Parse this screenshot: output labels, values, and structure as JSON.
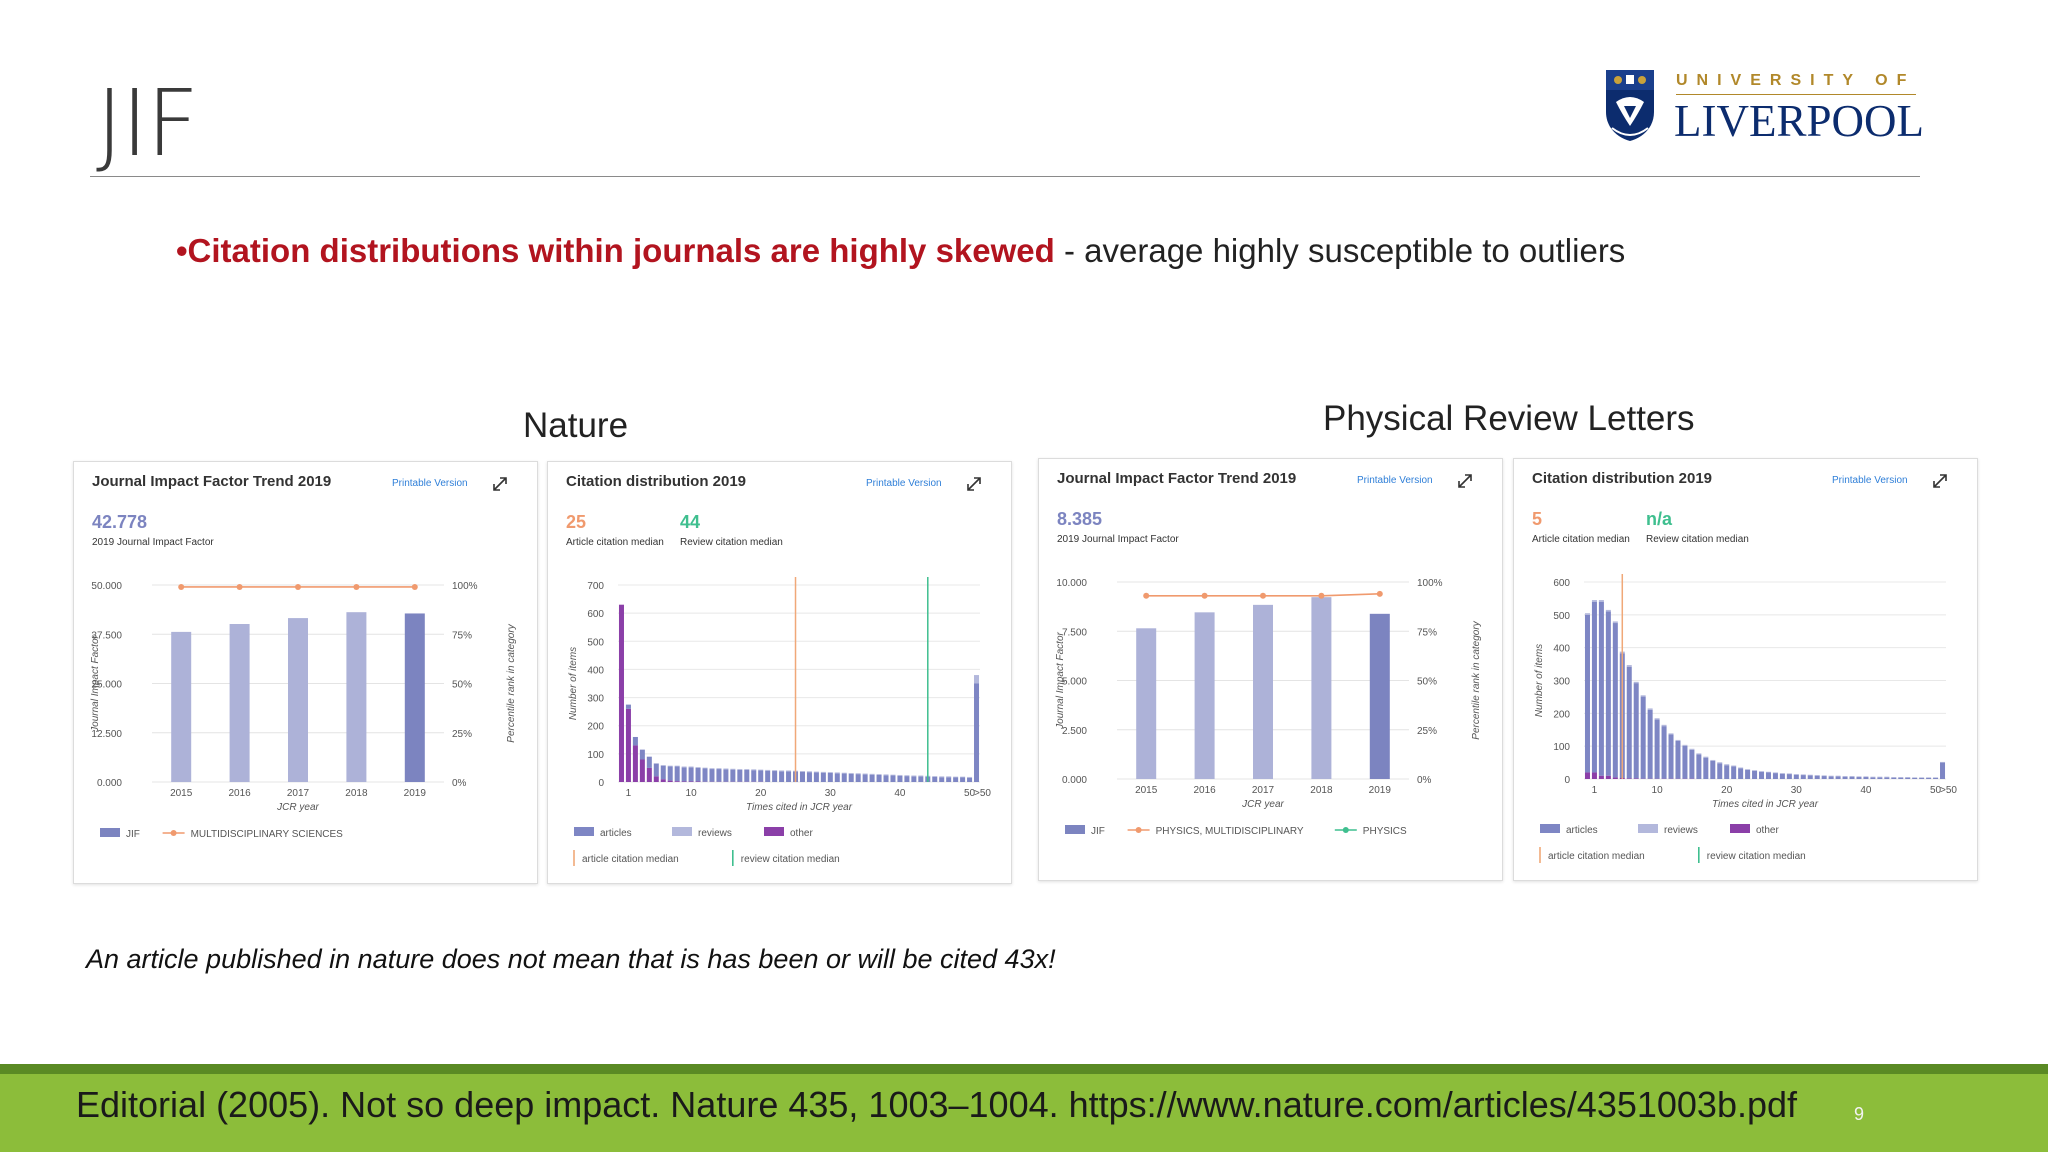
{
  "slide": {
    "title": "JIF",
    "bullet_bold": "•Citation distributions within journals are highly skewed",
    "bullet_rest": " - average highly susceptible to outliers",
    "note": "An article published in nature does not mean that is has been or will be cited 43x!",
    "footer_reference": "Editorial (2005). Not so deep impact. Nature 435, 1003–1004. https://www.nature.com/articles/4351003b.pdf",
    "page_number": "9"
  },
  "logo": {
    "line1": "UNIVERSITY OF",
    "line2": "LIVERPOOL",
    "colors": {
      "gold": "#b1882a",
      "navy": "#0c2c6e"
    }
  },
  "colors": {
    "accent_red": "#b2141f",
    "footer_green": "#8cbd3a",
    "jif_bar": "#adb2d8",
    "jif_bar_current": "#7c84c0",
    "category_orange": "#f09a6e",
    "article_median": "#f0a878",
    "review_median": "#3fbf8f",
    "articles": "#7e86c4",
    "reviews": "#b3b8dc",
    "other": "#8b3fa8"
  },
  "groups": [
    {
      "label": "Nature",
      "jif_panel": {
        "title": "Journal Impact Factor Trend 2019",
        "printable": "Printable Version",
        "value": "42.778",
        "value_label": "2019 Journal Impact Factor",
        "left_axis_label": "Journal Impact Factor",
        "right_axis_label": "Percentile rank in category",
        "x_axis_label": "JCR year",
        "left_ticks": [
          "0.000",
          "12.500",
          "25.000",
          "37.500",
          "50.000"
        ],
        "right_ticks": [
          "0%",
          "25%",
          "50%",
          "75%",
          "100%"
        ],
        "legend": [
          {
            "label": "JIF",
            "kind": "bar"
          },
          {
            "label": "MULTIDISCIPLINARY SCIENCES",
            "kind": "line",
            "color": "#f09a6e"
          }
        ]
      },
      "cit_panel": {
        "title": "Citation distribution 2019",
        "printable": "Printable Version",
        "article_median": "25",
        "article_median_label": "Article citation median",
        "review_median": "44",
        "review_median_label": "Review citation median",
        "y_axis_label": "Number of items",
        "x_axis_label": "Times cited in JCR year",
        "y_ticks": [
          "0",
          "100",
          "200",
          "300",
          "400",
          "500",
          "600",
          "700"
        ],
        "x_ticks": [
          "1",
          "10",
          "20",
          "30",
          "40",
          "50",
          ">50"
        ],
        "legend": [
          "articles",
          "reviews",
          "other"
        ],
        "legend2": [
          "article citation median",
          "review citation median"
        ]
      }
    },
    {
      "label": "Physical Review Letters",
      "jif_panel": {
        "title": "Journal Impact Factor Trend 2019",
        "printable": "Printable Version",
        "value": "8.385",
        "value_label": "2019 Journal Impact Factor",
        "left_axis_label": "Journal Impact Factor",
        "right_axis_label": "Percentile rank in category",
        "x_axis_label": "JCR year",
        "left_ticks": [
          "0.000",
          "2.500",
          "5.000",
          "7.500",
          "10.000"
        ],
        "right_ticks": [
          "0%",
          "25%",
          "50%",
          "75%",
          "100%"
        ],
        "legend": [
          {
            "label": "JIF",
            "kind": "bar"
          },
          {
            "label": "PHYSICS, MULTIDISCIPLINARY",
            "kind": "line",
            "color": "#f09a6e"
          },
          {
            "label": "PHYSICS",
            "kind": "line",
            "color": "#3fbf8f"
          }
        ]
      },
      "cit_panel": {
        "title": "Citation distribution 2019",
        "printable": "Printable Version",
        "article_median": "5",
        "article_median_label": "Article citation median",
        "review_median": "n/a",
        "review_median_label": "Review citation median",
        "y_axis_label": "Number of items",
        "x_axis_label": "Times cited in JCR year",
        "y_ticks": [
          "0",
          "100",
          "200",
          "300",
          "400",
          "500",
          "600"
        ],
        "x_ticks": [
          "1",
          "10",
          "20",
          "30",
          "40",
          "50",
          ">50"
        ],
        "legend": [
          "articles",
          "reviews",
          "other"
        ],
        "legend2": [
          "article citation median",
          "review citation median"
        ]
      }
    }
  ],
  "chart_data": [
    {
      "type": "bar",
      "title": "Journal Impact Factor Trend 2019",
      "xlabel": "JCR year",
      "ylabel": "Journal Impact Factor",
      "ylim": [
        0,
        50
      ],
      "categories": [
        "2015",
        "2016",
        "2017",
        "2018",
        "2019"
      ],
      "series": [
        {
          "name": "JIF",
          "values": [
            38.1,
            40.1,
            41.6,
            43.1,
            42.778
          ]
        },
        {
          "name": "MULTIDISCIPLINARY SCIENCES",
          "axis": "right",
          "values": [
            99,
            99,
            99,
            99,
            99
          ]
        }
      ]
    },
    {
      "type": "bar",
      "title": "Citation distribution 2019",
      "xlabel": "Times cited in JCR year",
      "ylabel": "Number of items",
      "ylim": [
        0,
        700
      ],
      "x": [
        0,
        1,
        2,
        3,
        4,
        5,
        6,
        7,
        8,
        9,
        10,
        11,
        12,
        13,
        14,
        15,
        16,
        17,
        18,
        19,
        20,
        21,
        22,
        23,
        24,
        25,
        26,
        27,
        28,
        29,
        30,
        31,
        32,
        33,
        34,
        35,
        36,
        37,
        38,
        39,
        40,
        41,
        42,
        43,
        44,
        45,
        46,
        47,
        48,
        49,
        50,
        ">50"
      ],
      "series": [
        {
          "name": "articles",
          "values": [
            0,
            15,
            30,
            35,
            40,
            45,
            48,
            50,
            52,
            50,
            50,
            48,
            47,
            45,
            45,
            44,
            43,
            42,
            42,
            41,
            40,
            40,
            39,
            38,
            38,
            37,
            36,
            35,
            34,
            33,
            32,
            31,
            30,
            29,
            28,
            27,
            26,
            25,
            24,
            23,
            22,
            21,
            20,
            20,
            19,
            18,
            17,
            17,
            16,
            16,
            15,
            350
          ]
        },
        {
          "name": "reviews",
          "values": [
            0,
            0,
            0,
            0,
            0,
            2,
            2,
            3,
            3,
            3,
            3,
            3,
            3,
            3,
            3,
            3,
            3,
            3,
            3,
            3,
            3,
            3,
            3,
            3,
            3,
            3,
            3,
            3,
            3,
            3,
            3,
            3,
            3,
            3,
            3,
            3,
            3,
            3,
            3,
            3,
            3,
            3,
            3,
            3,
            3,
            3,
            3,
            3,
            3,
            3,
            3,
            30
          ]
        },
        {
          "name": "other",
          "values": [
            630,
            260,
            130,
            80,
            50,
            20,
            10,
            5,
            3,
            2,
            2,
            2,
            1,
            1,
            1,
            1,
            1,
            1,
            1,
            1,
            1,
            0,
            0,
            0,
            0,
            0,
            0,
            0,
            0,
            0,
            0,
            0,
            0,
            0,
            0,
            0,
            0,
            0,
            0,
            0,
            0,
            0,
            0,
            0,
            0,
            0,
            0,
            0,
            0,
            0,
            0,
            0
          ]
        }
      ],
      "article_citation_median": 25,
      "review_citation_median": 44
    },
    {
      "type": "bar",
      "title": "Journal Impact Factor Trend 2019",
      "xlabel": "JCR year",
      "ylabel": "Journal Impact Factor",
      "ylim": [
        0,
        10
      ],
      "categories": [
        "2015",
        "2016",
        "2017",
        "2018",
        "2019"
      ],
      "series": [
        {
          "name": "JIF",
          "values": [
            7.65,
            8.46,
            8.84,
            9.23,
            8.385
          ]
        },
        {
          "name": "PHYSICS, MULTIDISCIPLINARY",
          "axis": "right",
          "values": [
            93,
            93,
            93,
            93,
            94
          ]
        }
      ]
    },
    {
      "type": "bar",
      "title": "Citation distribution 2019",
      "xlabel": "Times cited in JCR year",
      "ylabel": "Number of items",
      "ylim": [
        0,
        600
      ],
      "x": [
        0,
        1,
        2,
        3,
        4,
        5,
        6,
        7,
        8,
        9,
        10,
        11,
        12,
        13,
        14,
        15,
        16,
        17,
        18,
        19,
        20,
        21,
        22,
        23,
        24,
        25,
        26,
        27,
        28,
        29,
        30,
        31,
        32,
        33,
        34,
        35,
        36,
        37,
        38,
        39,
        40,
        41,
        42,
        43,
        44,
        45,
        46,
        47,
        48,
        49,
        50,
        ">50"
      ],
      "series": [
        {
          "name": "articles",
          "values": [
            480,
            520,
            530,
            500,
            470,
            380,
            340,
            290,
            250,
            210,
            180,
            160,
            135,
            115,
            100,
            88,
            75,
            65,
            55,
            48,
            42,
            38,
            32,
            28,
            25,
            22,
            20,
            18,
            16,
            15,
            13,
            12,
            11,
            10,
            9,
            8,
            8,
            7,
            7,
            6,
            6,
            5,
            5,
            5,
            4,
            4,
            4,
            3,
            3,
            3,
            3,
            50
          ]
        },
        {
          "name": "reviews",
          "values": [
            5,
            5,
            5,
            5,
            5,
            5,
            5,
            4,
            4,
            4,
            4,
            4,
            3,
            3,
            3,
            3,
            3,
            3,
            3,
            3,
            3,
            3,
            3,
            2,
            2,
            2,
            2,
            2,
            2,
            2,
            2,
            2,
            2,
            2,
            2,
            2,
            2,
            2,
            2,
            2,
            2,
            2,
            2,
            2,
            2,
            2,
            2,
            2,
            2,
            2,
            2,
            2
          ]
        },
        {
          "name": "other",
          "values": [
            20,
            20,
            10,
            10,
            5,
            3,
            2,
            2,
            1,
            1,
            1,
            1,
            1,
            1,
            1,
            1,
            0,
            0,
            0,
            0,
            0,
            0,
            0,
            0,
            0,
            0,
            0,
            0,
            0,
            0,
            0,
            0,
            0,
            0,
            0,
            0,
            0,
            0,
            0,
            0,
            0,
            0,
            0,
            0,
            0,
            0,
            0,
            0,
            0,
            0,
            0,
            0
          ]
        }
      ],
      "article_citation_median": 5
    }
  ]
}
